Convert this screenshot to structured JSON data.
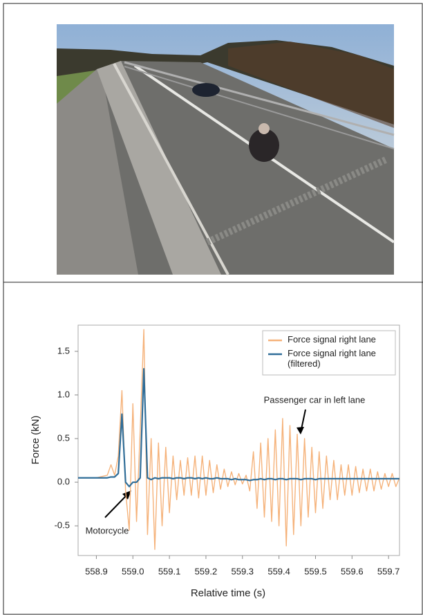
{
  "chart_data": {
    "type": "line",
    "xlabel": "Relative time (s)",
    "ylabel": "Force (kN)",
    "x": [
      558.85,
      558.86,
      558.87,
      558.88,
      558.89,
      558.9,
      558.91,
      558.92,
      558.93,
      558.94,
      558.95,
      558.96,
      558.97,
      558.98,
      558.99,
      559.0,
      559.01,
      559.02,
      559.03,
      559.04,
      559.05,
      559.06,
      559.07,
      559.08,
      559.09,
      559.1,
      559.11,
      559.12,
      559.13,
      559.14,
      559.15,
      559.16,
      559.17,
      559.18,
      559.19,
      559.2,
      559.21,
      559.22,
      559.23,
      559.24,
      559.25,
      559.26,
      559.27,
      559.28,
      559.29,
      559.3,
      559.31,
      559.32,
      559.33,
      559.34,
      559.35,
      559.36,
      559.37,
      559.38,
      559.39,
      559.4,
      559.41,
      559.42,
      559.43,
      559.44,
      559.45,
      559.46,
      559.47,
      559.48,
      559.49,
      559.5,
      559.51,
      559.52,
      559.53,
      559.54,
      559.55,
      559.56,
      559.57,
      559.58,
      559.59,
      559.6,
      559.61,
      559.62,
      559.63,
      559.64,
      559.65,
      559.66,
      559.67,
      559.68,
      559.69,
      559.7,
      559.71,
      559.72,
      559.73
    ],
    "series": [
      {
        "name": "Force signal right lane",
        "color": "#f5b27a",
        "values": [
          0.05,
          0.05,
          0.05,
          0.05,
          0.05,
          0.05,
          0.06,
          0.07,
          0.08,
          0.2,
          0.08,
          0.3,
          1.05,
          -0.1,
          -0.55,
          0.9,
          -0.45,
          0.6,
          1.75,
          -0.6,
          0.5,
          -0.77,
          0.45,
          -0.5,
          0.4,
          -0.35,
          0.3,
          -0.2,
          0.25,
          -0.15,
          0.28,
          -0.15,
          0.3,
          -0.18,
          0.3,
          -0.15,
          0.25,
          -0.12,
          0.2,
          -0.08,
          0.15,
          -0.05,
          0.12,
          -0.03,
          0.1,
          -0.02,
          0.08,
          -0.1,
          0.35,
          -0.3,
          0.45,
          -0.4,
          0.5,
          -0.45,
          0.6,
          -0.5,
          0.73,
          -0.73,
          0.65,
          -0.6,
          0.55,
          -0.5,
          0.5,
          -0.4,
          0.4,
          -0.35,
          0.35,
          -0.3,
          0.3,
          -0.2,
          0.25,
          -0.2,
          0.2,
          -0.15,
          0.2,
          -0.15,
          0.18,
          -0.12,
          0.15,
          -0.1,
          0.15,
          -0.1,
          0.12,
          -0.08,
          0.1,
          -0.05,
          0.1,
          -0.05,
          0.05
        ]
      },
      {
        "name": "Force signal right lane (filtered)",
        "color": "#2f6d98",
        "values": [
          0.05,
          0.05,
          0.05,
          0.05,
          0.05,
          0.05,
          0.05,
          0.05,
          0.05,
          0.06,
          0.06,
          0.1,
          0.78,
          0.0,
          -0.05,
          0.0,
          0.0,
          0.05,
          1.3,
          0.05,
          0.03,
          0.05,
          0.04,
          0.05,
          0.05,
          0.05,
          0.04,
          0.05,
          0.05,
          0.04,
          0.05,
          0.05,
          0.04,
          0.05,
          0.04,
          0.05,
          0.04,
          0.04,
          0.05,
          0.04,
          0.04,
          0.04,
          0.03,
          0.04,
          0.03,
          0.03,
          0.03,
          0.02,
          0.03,
          0.03,
          0.04,
          0.03,
          0.04,
          0.04,
          0.03,
          0.04,
          0.04,
          0.03,
          0.04,
          0.04,
          0.04,
          0.03,
          0.04,
          0.04,
          0.04,
          0.03,
          0.04,
          0.04,
          0.04,
          0.04,
          0.04,
          0.04,
          0.04,
          0.04,
          0.04,
          0.04,
          0.04,
          0.04,
          0.04,
          0.04,
          0.04,
          0.04,
          0.04,
          0.04,
          0.04,
          0.04,
          0.04,
          0.04,
          0.04
        ]
      }
    ],
    "xlim": [
      558.85,
      559.73
    ],
    "xticks": [
      558.9,
      {
        "value": 559.0,
        "label": "559.0"
      },
      559.1,
      559.2,
      559.3,
      559.4,
      559.5,
      559.6,
      559.7
    ],
    "ylim": [
      -0.84,
      1.8
    ],
    "yticks": [
      -0.5,
      {
        "value": 0.0,
        "label": "0.0"
      },
      0.5,
      {
        "value": 1.0,
        "label": "1.0"
      },
      1.5
    ],
    "legend": "upper right",
    "annotations": [
      {
        "text": "Passenger car in left lane"
      },
      {
        "text": "Motorcycle"
      }
    ]
  }
}
